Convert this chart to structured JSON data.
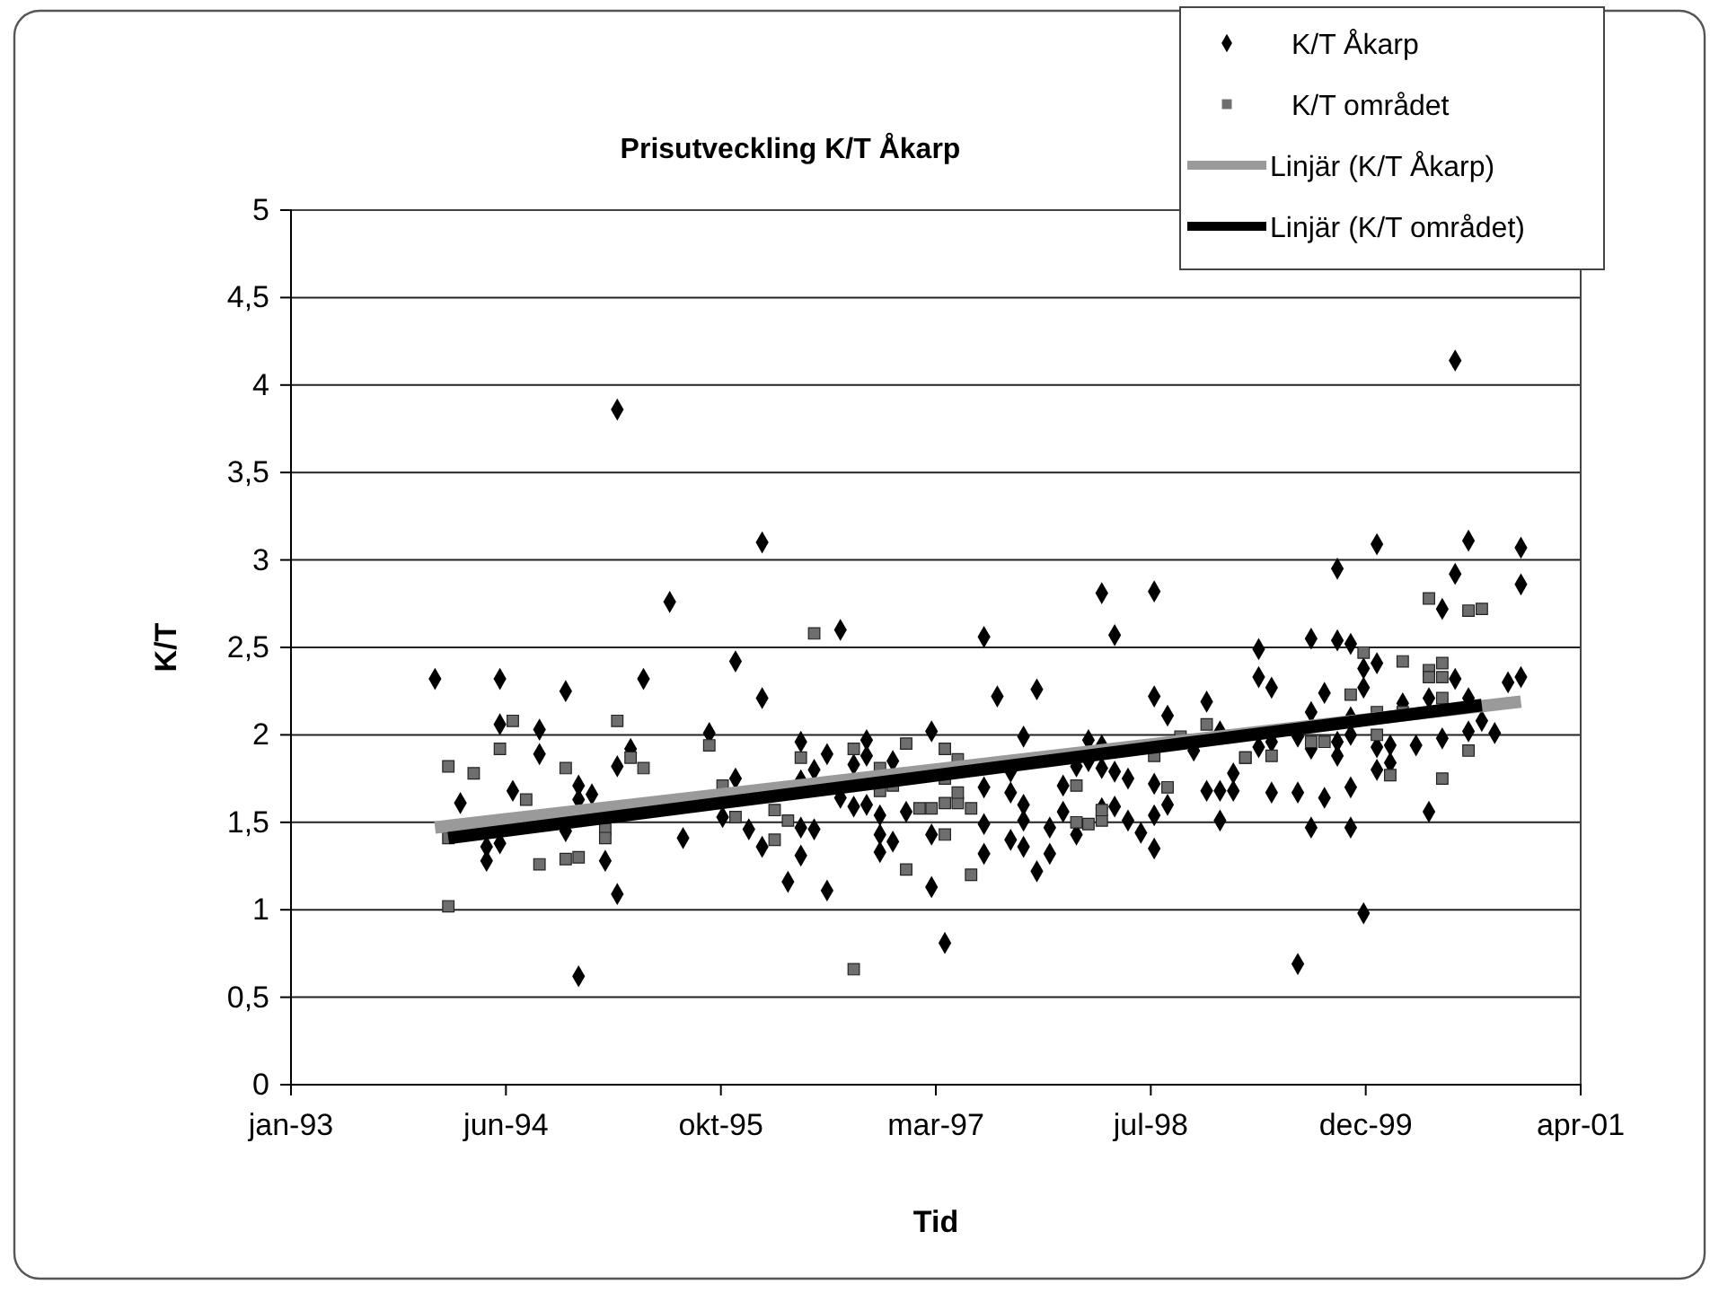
{
  "chart_data": {
    "type": "scatter",
    "title": "Prisutveckling K/T Åkarp",
    "xlabel": "Tid",
    "ylabel": "K/T",
    "xlim": [
      "1993-01-31",
      "2001-04-19"
    ],
    "xticks": [
      {
        "value": "1993-01-31",
        "label": "jan-93"
      },
      {
        "value": "1994-06-15",
        "label": "jun-94"
      },
      {
        "value": "1995-10-28",
        "label": "okt-95"
      },
      {
        "value": "1997-03-11",
        "label": "mar-97"
      },
      {
        "value": "1998-07-24",
        "label": "jul-98"
      },
      {
        "value": "1999-12-06",
        "label": "dec-99"
      },
      {
        "value": "2001-04-19",
        "label": "apr-01"
      }
    ],
    "ylim": [
      0,
      5
    ],
    "yticks": [
      0,
      {
        "value": 0.5,
        "label": "0,5"
      },
      1,
      {
        "value": 1.5,
        "label": "1,5"
      },
      2,
      {
        "value": 2.5,
        "label": "2,5"
      },
      3,
      {
        "value": 3.5,
        "label": "3,5"
      },
      4,
      {
        "value": 4.5,
        "label": "4,5"
      },
      5
    ],
    "grid": "y",
    "legend": "top right",
    "series": [
      {
        "name": "K/T Åkarp",
        "marker": "diamond",
        "color": "#000000",
        "x": [
          "1994-01",
          "1994-06",
          "1994-11",
          "1995-05",
          "1995-12",
          "1996-02",
          "1995-03",
          "1996-02",
          "1995-07",
          "1994-06",
          "1994-09",
          "1995-10",
          "1996-05",
          "1996-07",
          "1994-03",
          "1994-07",
          "1994-09",
          "1994-12",
          "1994-12",
          "1995-01",
          "1995-03",
          "1995-04",
          "1994-11",
          "1994-05",
          "1994-05",
          "1994-06",
          "1995-02",
          "1995-03",
          "1994-12",
          "1995-08",
          "1995-11",
          "1996-01",
          "1996-02",
          "1996-04",
          "1996-05",
          "1996-05",
          "1996-06",
          "1996-07",
          "1995-12",
          "1996-05",
          "1996-06",
          "1996-08",
          "1997-07",
          "1998-04",
          "1998-08",
          "1998-05",
          "1997-08",
          "1997-11",
          "1998-08",
          "1998-09",
          "1998-12",
          "1996-10",
          "1996-10",
          "1996-09",
          "1996-12",
          "1997-03",
          "1997-10",
          "1998-03",
          "1998-04",
          "1996-08",
          "1996-09",
          "1996-10",
          "1996-11",
          "1997-01",
          "1996-11",
          "1996-11",
          "1996-12",
          "1997-03",
          "1997-03",
          "1997-04",
          "1997-07",
          "1997-07",
          "1997-07",
          "1997-09",
          "1997-09",
          "1997-10",
          "1997-10",
          "1997-09",
          "1997-10",
          "1997-11",
          "1997-12",
          "1997-12",
          "1998-01",
          "1998-01",
          "1998-02",
          "1998-02",
          "1998-03",
          "1998-04",
          "1998-05",
          "1998-06",
          "1998-04",
          "1998-05",
          "1998-06",
          "1998-07",
          "1998-08",
          "1998-08",
          "1998-08",
          "1998-09",
          "1998-11",
          "1998-12",
          "1999-01",
          "1999-02",
          "1999-02",
          "1999-01",
          "1999-01",
          "2000-07",
          "2000-01",
          "2000-08",
          "2000-12",
          "1999-10",
          "2000-07",
          "2000-12",
          "2000-06",
          "1999-04",
          "1999-08",
          "1999-10",
          "1999-11",
          "1999-12",
          "2000-01",
          "1999-04",
          "1999-05",
          "1999-09",
          "1999-12",
          "2000-07",
          "2000-11",
          "2000-12",
          "1999-08",
          "2000-05",
          "2000-08",
          "2000-09",
          "2000-10",
          "2000-08",
          "2000-06",
          "2000-04",
          "2000-03",
          "1999-11",
          "1999-11",
          "2000-01",
          "2000-02",
          "2000-02",
          "2000-01",
          "1999-10",
          "1999-10",
          "1999-08",
          "1999-07",
          "1999-05",
          "1999-04",
          "1999-05",
          "1999-07",
          "1999-09",
          "1999-11",
          "1999-08",
          "1999-11",
          "2000-05",
          "1999-12",
          "1999-07"
        ],
        "values": [
          2.32,
          2.32,
          2.25,
          2.32,
          2.42,
          2.21,
          3.86,
          3.1,
          2.76,
          2.06,
          2.03,
          2.01,
          1.96,
          1.89,
          1.61,
          1.68,
          1.89,
          1.71,
          1.63,
          1.66,
          1.82,
          1.92,
          1.45,
          1.36,
          1.28,
          1.38,
          1.28,
          1.09,
          0.62,
          1.41,
          1.53,
          1.46,
          1.36,
          1.16,
          1.31,
          1.47,
          1.46,
          1.11,
          1.75,
          1.74,
          1.8,
          2.6,
          2.56,
          2.81,
          2.82,
          2.57,
          2.22,
          2.26,
          2.22,
          2.11,
          2.19,
          1.97,
          1.88,
          1.83,
          1.85,
          2.02,
          1.99,
          1.97,
          1.94,
          1.64,
          1.59,
          1.6,
          1.54,
          1.56,
          1.43,
          1.33,
          1.39,
          1.43,
          1.13,
          0.81,
          1.7,
          1.49,
          1.32,
          1.79,
          1.67,
          1.6,
          1.51,
          1.4,
          1.36,
          1.22,
          1.47,
          1.32,
          1.71,
          1.56,
          1.82,
          1.43,
          1.85,
          1.81,
          1.79,
          1.75,
          1.58,
          1.59,
          1.51,
          1.44,
          1.72,
          1.54,
          1.35,
          1.6,
          1.91,
          1.68,
          1.68,
          1.68,
          1.78,
          1.51,
          2.02,
          4.14,
          3.09,
          3.11,
          3.07,
          2.95,
          2.92,
          2.86,
          2.72,
          2.49,
          2.55,
          2.54,
          2.52,
          2.38,
          2.41,
          2.33,
          2.27,
          2.24,
          2.27,
          2.32,
          2.3,
          2.33,
          2.13,
          2.21,
          2.21,
          2.08,
          2.01,
          2.02,
          1.98,
          1.94,
          2.18,
          2.1,
          2.0,
          1.93,
          1.94,
          1.84,
          1.8,
          1.88,
          1.96,
          1.92,
          1.99,
          1.96,
          1.93,
          1.67,
          1.67,
          1.64,
          1.7,
          1.47,
          1.47,
          1.56,
          0.98,
          0.69
        ]
      },
      {
        "name": "K/T området",
        "marker": "square",
        "color": "#6e6e6e",
        "x": [
          "1996-06",
          "1994-07",
          "1995-03",
          "1994-06",
          "1994-02",
          "1994-04",
          "1994-11",
          "1995-04",
          "1995-05",
          "1995-10",
          "1994-08",
          "1995-11",
          "1996-05",
          "1996-03",
          "1996-04",
          "1995-12",
          "1995-02",
          "1995-02",
          "1994-11",
          "1994-12",
          "1994-09",
          "1996-03",
          "1994-02",
          "1994-02",
          "1996-09",
          "1997-01",
          "1997-04",
          "1997-05",
          "1996-11",
          "1996-11",
          "1996-12",
          "1997-04",
          "1997-02",
          "1997-03",
          "1997-04",
          "1997-05",
          "1997-06",
          "1997-05",
          "1997-04",
          "1997-01",
          "1997-06",
          "1996-09",
          "1998-02",
          "1998-02",
          "1998-03",
          "1998-04",
          "1998-04",
          "1998-08",
          "1998-09",
          "1998-12",
          "1998-10",
          "1999-03",
          "1999-03",
          "1999-05",
          "1999-08",
          "1999-09",
          "1999-12",
          "1999-11",
          "2000-01",
          "2000-01",
          "2000-02",
          "2000-03",
          "2000-05",
          "2000-06",
          "2000-05",
          "2000-08",
          "2000-09",
          "2000-05",
          "2000-06",
          "2000-06",
          "2000-08",
          "2000-06",
          "2000-03"
        ],
        "values": [
          2.58,
          2.08,
          2.08,
          1.92,
          1.82,
          1.78,
          1.81,
          1.87,
          1.81,
          1.94,
          1.63,
          1.71,
          1.87,
          1.57,
          1.51,
          1.53,
          1.46,
          1.41,
          1.29,
          1.3,
          1.26,
          1.4,
          1.02,
          1.41,
          1.92,
          1.95,
          1.92,
          1.86,
          1.81,
          1.68,
          1.71,
          1.75,
          1.58,
          1.58,
          1.61,
          1.61,
          1.58,
          1.67,
          1.43,
          1.23,
          1.2,
          0.66,
          1.71,
          1.5,
          1.49,
          1.51,
          1.57,
          1.88,
          1.7,
          2.06,
          1.99,
          1.87,
          1.87,
          1.88,
          1.96,
          1.96,
          2.47,
          2.23,
          2.13,
          2.0,
          1.77,
          2.42,
          2.37,
          2.41,
          2.78,
          2.71,
          2.72,
          2.33,
          2.33,
          2.21,
          1.91,
          1.75,
          2.13
        ]
      },
      {
        "name": "Linjär (K/T Åkarp)",
        "type": "line",
        "color": "#9a9a9a",
        "x": [
          "1994-01",
          "2000-12"
        ],
        "values": [
          1.47,
          2.19
        ]
      },
      {
        "name": "Linjär (K/T området)",
        "type": "line",
        "color": "#000000",
        "x": [
          "1994-02",
          "2000-09"
        ],
        "values": [
          1.41,
          2.17
        ]
      }
    ]
  }
}
